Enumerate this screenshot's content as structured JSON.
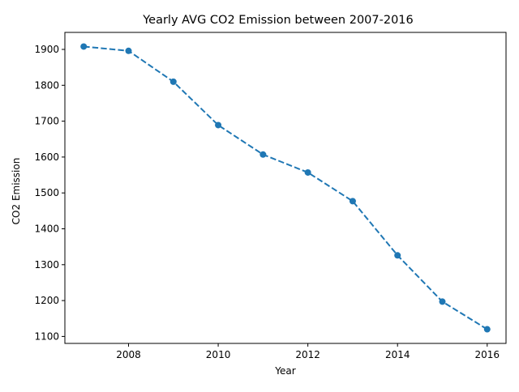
{
  "chart_data": {
    "type": "line",
    "title": "Yearly AVG CO2 Emission between 2007-2016",
    "xlabel": "Year",
    "ylabel": "CO2 Emission",
    "x": [
      2007,
      2008,
      2009,
      2010,
      2011,
      2012,
      2013,
      2014,
      2015,
      2016
    ],
    "series": [
      {
        "values": [
          1908,
          1896,
          1810,
          1689,
          1607,
          1557,
          1477,
          1326,
          1197,
          1120
        ]
      }
    ],
    "xlim": [
      2006.58,
      2016.42
    ],
    "ylim": [
      1080.6,
      1947.4
    ],
    "xticks": [
      2008,
      2010,
      2012,
      2014,
      2016
    ],
    "yticks": [
      1100,
      1200,
      1300,
      1400,
      1500,
      1600,
      1700,
      1800,
      1900
    ],
    "line_style": "dashed",
    "marker": "circle",
    "color": "#1f77b4",
    "grid": false,
    "legend": "none"
  }
}
